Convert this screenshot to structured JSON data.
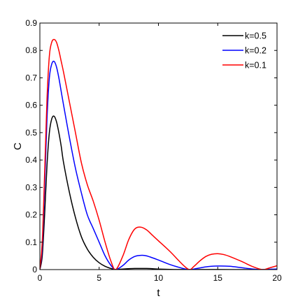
{
  "chart_data": {
    "type": "line",
    "title": "",
    "xlabel": "t",
    "ylabel": "C",
    "xlim": [
      0,
      20
    ],
    "ylim": [
      0,
      0.9
    ],
    "xticks": [
      0,
      5,
      10,
      15,
      20
    ],
    "xtick_labels": [
      "0",
      "5",
      "10",
      "15",
      "20"
    ],
    "yticks": [
      0,
      0.1,
      0.2,
      0.3,
      0.4,
      0.5,
      0.6,
      0.7,
      0.8,
      0.9
    ],
    "ytick_labels": [
      "0",
      "0.1",
      "0.2",
      "0.3",
      "0.4",
      "0.5",
      "0.6",
      "0.7",
      "0.8",
      "0.9"
    ],
    "grid": false,
    "legend_position": "top-right",
    "series": [
      {
        "name": "k=0.5",
        "color": "#000000",
        "x": [
          0,
          0.2,
          0.4,
          0.6,
          0.8,
          1.0,
          1.2,
          1.4,
          1.6,
          1.8,
          2.0,
          2.5,
          3.0,
          3.5,
          4.0,
          4.5,
          5.0,
          5.5,
          6.0,
          6.4,
          7.0,
          8.0,
          9.0,
          10.0,
          11.0,
          12.0,
          12.6,
          13.0,
          14.0,
          15.0,
          16.0,
          17.0,
          18.0,
          19.0,
          20.0
        ],
        "y": [
          0,
          0.05,
          0.2,
          0.38,
          0.5,
          0.55,
          0.56,
          0.54,
          0.5,
          0.45,
          0.39,
          0.28,
          0.19,
          0.12,
          0.075,
          0.045,
          0.025,
          0.012,
          0.004,
          0.0,
          0.002,
          0.004,
          0.004,
          0.002,
          0.0007,
          0.0002,
          0.0,
          0.0001,
          0.0002,
          0.0002,
          0.0001,
          5e-05,
          0.0,
          0.0,
          0.0
        ]
      },
      {
        "name": "k=0.2",
        "color": "#0000ff",
        "x": [
          0,
          0.2,
          0.4,
          0.6,
          0.8,
          1.0,
          1.2,
          1.4,
          1.6,
          1.8,
          2.0,
          2.5,
          3.0,
          3.5,
          4.0,
          4.5,
          5.0,
          5.5,
          6.0,
          6.4,
          7.0,
          7.5,
          8.0,
          8.5,
          9.0,
          10.0,
          11.0,
          12.0,
          12.6,
          13.0,
          14.0,
          15.0,
          16.0,
          17.0,
          18.0,
          18.8,
          19.5,
          20.0
        ],
        "y": [
          0,
          0.08,
          0.3,
          0.55,
          0.7,
          0.75,
          0.76,
          0.74,
          0.7,
          0.65,
          0.6,
          0.48,
          0.37,
          0.28,
          0.2,
          0.15,
          0.1,
          0.05,
          0.015,
          0.0,
          0.015,
          0.035,
          0.048,
          0.052,
          0.05,
          0.035,
          0.018,
          0.005,
          0.0,
          0.002,
          0.01,
          0.013,
          0.012,
          0.007,
          0.002,
          0.0,
          0.0015,
          0.002
        ]
      },
      {
        "name": "k=0.1",
        "color": "#ff0000",
        "x": [
          0,
          0.2,
          0.4,
          0.6,
          0.8,
          1.0,
          1.2,
          1.4,
          1.6,
          1.8,
          2.0,
          2.5,
          3.0,
          3.5,
          4.0,
          4.5,
          5.0,
          5.5,
          6.0,
          6.4,
          7.0,
          7.5,
          8.0,
          8.5,
          9.0,
          9.5,
          10.0,
          11.0,
          12.0,
          12.6,
          13.0,
          13.5,
          14.0,
          14.5,
          15.0,
          15.5,
          16.0,
          17.0,
          18.0,
          18.8,
          19.5,
          20.0
        ],
        "y": [
          0,
          0.1,
          0.35,
          0.62,
          0.78,
          0.83,
          0.84,
          0.83,
          0.8,
          0.76,
          0.72,
          0.61,
          0.5,
          0.39,
          0.31,
          0.25,
          0.18,
          0.1,
          0.03,
          0.0,
          0.05,
          0.11,
          0.148,
          0.155,
          0.145,
          0.125,
          0.105,
          0.065,
          0.02,
          0.0,
          0.012,
          0.032,
          0.048,
          0.056,
          0.058,
          0.055,
          0.048,
          0.03,
          0.01,
          0.0,
          0.008,
          0.014
        ]
      }
    ]
  }
}
